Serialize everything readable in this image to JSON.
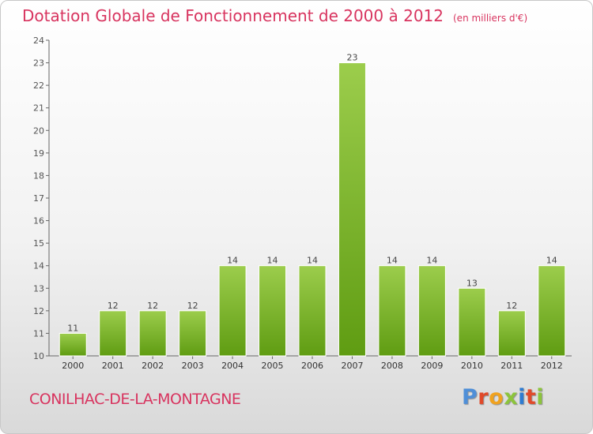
{
  "header": {
    "title": "Dotation Globale de Fonctionnement de 2000 à 2012",
    "unit": "(en milliers d'€)"
  },
  "footer": {
    "city": "CONILHAC-DE-LA-MONTAGNE",
    "brand": "Proxiti"
  },
  "colors": {
    "title": "#d8345f",
    "bar_top": "#9ccd4c",
    "bar_bottom": "#5f9c12",
    "axis": "#666666"
  },
  "chart_data": {
    "type": "bar",
    "title": "Dotation Globale de Fonctionnement de 2000 à 2012",
    "subtitle": "(en milliers d'€)",
    "categories": [
      "2000",
      "2001",
      "2002",
      "2003",
      "2004",
      "2005",
      "2006",
      "2007",
      "2008",
      "2009",
      "2010",
      "2011",
      "2012"
    ],
    "values": [
      11,
      12,
      12,
      12,
      14,
      14,
      14,
      23,
      14,
      14,
      13,
      12,
      14
    ],
    "ylim": [
      10,
      24
    ],
    "yticks": [
      10,
      11,
      12,
      13,
      14,
      15,
      16,
      17,
      18,
      19,
      20,
      21,
      22,
      23,
      24
    ],
    "grid": false,
    "data_labels": true
  }
}
